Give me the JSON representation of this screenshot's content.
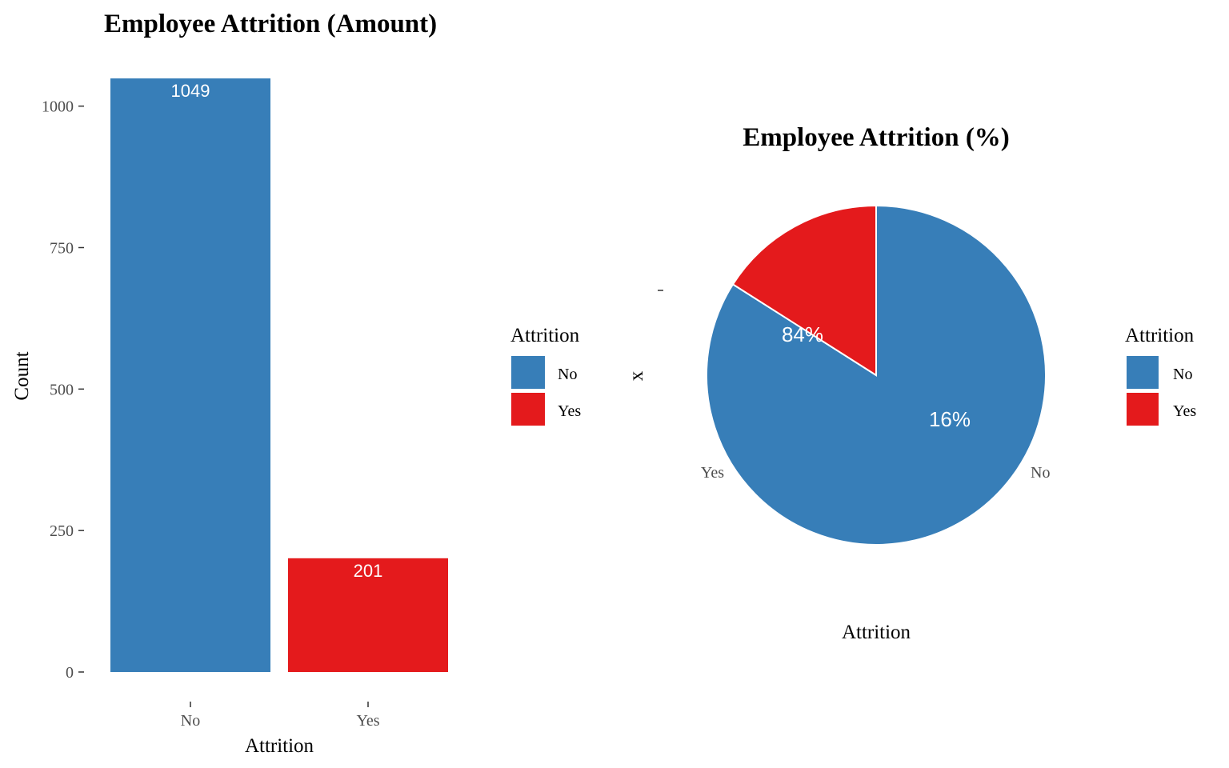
{
  "colors": {
    "no": "#377EB8",
    "yes": "#E41A1C"
  },
  "chart_data": [
    {
      "type": "bar",
      "title": "Employee Attrition (Amount)",
      "xlabel": "Attrition",
      "ylabel": "Count",
      "categories": [
        "No",
        "Yes"
      ],
      "values": [
        1049,
        201
      ],
      "value_labels": [
        "1049",
        "201"
      ],
      "ylim": [
        0,
        1049
      ],
      "yticks": [
        0,
        250,
        500,
        750,
        1000
      ],
      "ytick_labels": [
        "0",
        "250",
        "500",
        "750",
        "1000"
      ],
      "grid": false,
      "legend": {
        "title": "Attrition",
        "placement": "right",
        "entries": [
          "No",
          "Yes"
        ]
      }
    },
    {
      "type": "pie",
      "title": "Employee Attrition (%)",
      "xlabel": "Attrition",
      "ylabel": "x",
      "slices": [
        {
          "category": "No",
          "value": 84,
          "label": "84%",
          "angle_label": "No"
        },
        {
          "category": "Yes",
          "value": 16,
          "label": "16%",
          "angle_label": "Yes"
        }
      ],
      "legend": {
        "title": "Attrition",
        "placement": "right",
        "entries": [
          "No",
          "Yes"
        ]
      }
    }
  ]
}
